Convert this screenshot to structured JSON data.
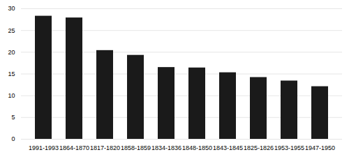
{
  "chart_data": {
    "type": "bar",
    "categories": [
      "1991-1993",
      "1864-1870",
      "1817-1820",
      "1858-1859",
      "1834-1836",
      "1848-1850",
      "1843-1845",
      "1825-1826",
      "1953-1955",
      "1947-1950"
    ],
    "values": [
      28.3,
      27.9,
      20.4,
      19.3,
      16.5,
      16.4,
      15.3,
      14.2,
      13.4,
      12.1
    ],
    "color": "#1a1a1a",
    "ylim": [
      0,
      30
    ],
    "yticks": [
      0,
      5,
      10,
      15,
      20,
      25,
      30
    ],
    "grid": true
  }
}
